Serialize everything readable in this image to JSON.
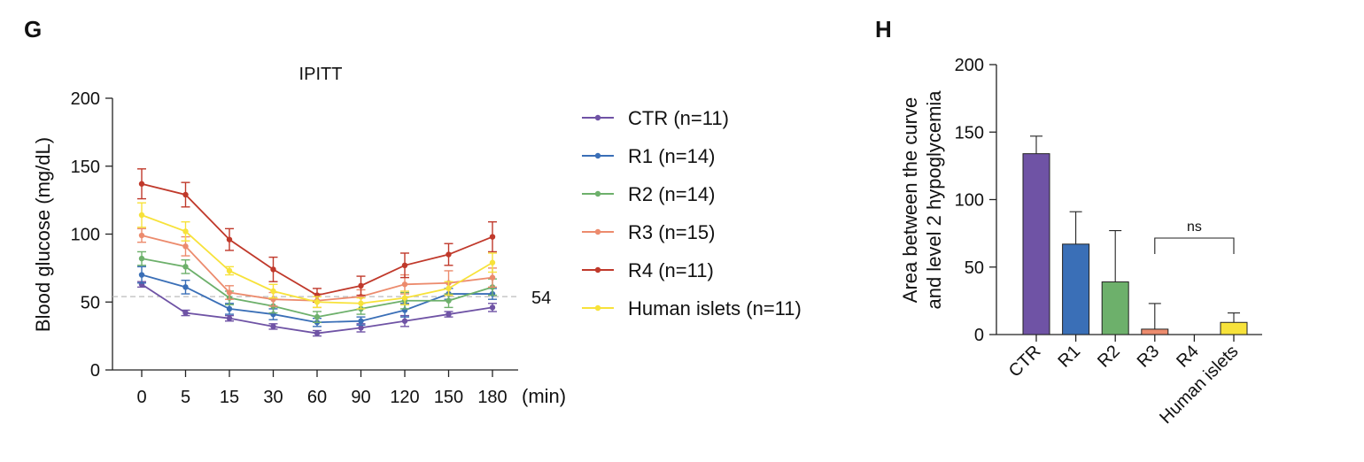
{
  "panels": {
    "left_letter": "G",
    "right_letter": "H"
  },
  "chart_data": [
    {
      "type": "line",
      "title": "IPITT",
      "ylabel": "Blood glucose (mg/dL)",
      "xlabel": "(min)",
      "categories": [
        "0",
        "5",
        "15",
        "30",
        "60",
        "90",
        "120",
        "150",
        "180"
      ],
      "ylim": [
        0,
        200
      ],
      "yticks": [
        0,
        50,
        100,
        150,
        200
      ],
      "reference_line": {
        "value": 54,
        "label": "54"
      },
      "legend_position": "right",
      "grid": false,
      "series": [
        {
          "name": "CTR (n=11)",
          "color": "#6f53a5",
          "values": [
            63,
            42,
            38,
            32,
            27,
            31,
            36,
            41,
            46
          ],
          "errors": [
            2,
            2,
            2,
            2,
            2,
            3,
            4,
            2,
            3
          ]
        },
        {
          "name": "R1 (n=14)",
          "color": "#3a6fb7",
          "values": [
            70,
            61,
            45,
            41,
            35,
            36,
            44,
            56,
            56
          ],
          "errors": [
            6,
            5,
            4,
            4,
            3,
            3,
            5,
            4,
            4
          ]
        },
        {
          "name": "R2 (n=14)",
          "color": "#6db06b",
          "values": [
            82,
            76,
            53,
            47,
            39,
            45,
            51,
            51,
            61
          ],
          "errors": [
            5,
            5,
            5,
            5,
            4,
            4,
            6,
            5,
            6
          ]
        },
        {
          "name": "R3 (n=15)",
          "color": "#ec8b6d",
          "values": [
            99,
            91,
            57,
            52,
            51,
            54,
            63,
            64,
            68
          ],
          "errors": [
            5,
            7,
            5,
            5,
            5,
            5,
            7,
            9,
            7
          ]
        },
        {
          "name": "R4 (n=11)",
          "color": "#c0392b",
          "values": [
            137,
            129,
            96,
            74,
            55,
            62,
            77,
            85,
            98
          ],
          "errors": [
            11,
            9,
            8,
            9,
            5,
            7,
            9,
            8,
            11
          ]
        },
        {
          "name": "Human islets (n=11)",
          "color": "#f7e23a",
          "values": [
            114,
            102,
            73,
            58,
            50,
            49,
            53,
            60,
            79
          ],
          "errors": [
            9,
            7,
            3,
            5,
            4,
            4,
            5,
            5,
            7
          ]
        }
      ]
    },
    {
      "type": "bar",
      "ylabel_lines": [
        "Area between the curve",
        "and level 2 hypoglycemia"
      ],
      "categories": [
        "CTR",
        "R1",
        "R2",
        "R3",
        "R4",
        "Human islets"
      ],
      "values": [
        134,
        67,
        39,
        4,
        0,
        9
      ],
      "errors": [
        13,
        24,
        38,
        19,
        0,
        7
      ],
      "colors": [
        "#6f53a5",
        "#3a6fb7",
        "#6db06b",
        "#ec8b6d",
        "#c0392b",
        "#f7e23a"
      ],
      "ylim": [
        0,
        200
      ],
      "yticks": [
        0,
        50,
        100,
        150,
        200
      ],
      "annotation": {
        "text": "ns",
        "from": "R3",
        "to": "Human islets"
      },
      "grid": false
    }
  ]
}
